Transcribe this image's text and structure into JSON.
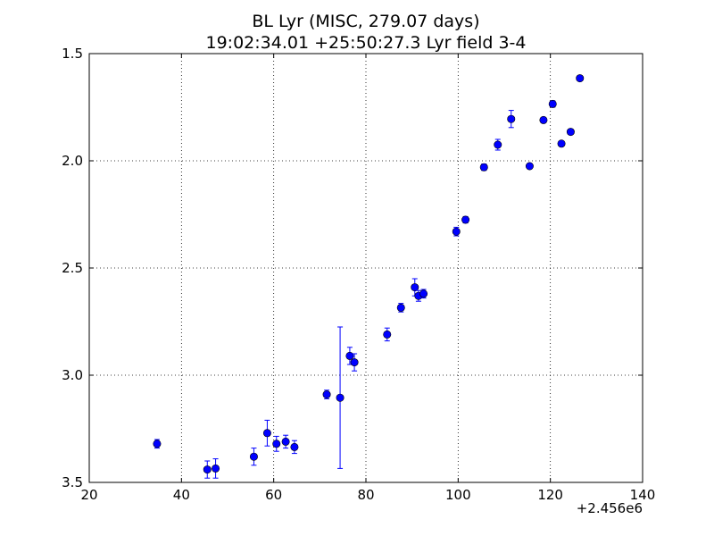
{
  "chart_data": {
    "type": "scatter",
    "title_lines": [
      "BL Lyr (MISC, 279.07 days)",
      "19:02:34.01 +25:50:27.3 Lyr field 3-4"
    ],
    "xlabel": "",
    "ylabel": "",
    "x_offset_label": "+2.456e6",
    "xlim": [
      20,
      140
    ],
    "ylim": [
      1.5,
      3.5
    ],
    "y_inverted": true,
    "grid": true,
    "grid_style": "dotted",
    "marker_color": "#0000ff",
    "xticks": [
      20,
      40,
      60,
      80,
      100,
      120,
      140
    ],
    "xtick_labels": [
      "20",
      "40",
      "60",
      "80",
      "100",
      "120",
      "140"
    ],
    "yticks": [
      1.5,
      2.0,
      2.5,
      3.0,
      3.5
    ],
    "ytick_labels": [
      "1.5",
      "2.0",
      "2.5",
      "3.0",
      "3.5"
    ],
    "points": [
      {
        "x": 34.7,
        "y": 3.32,
        "err": 0.02
      },
      {
        "x": 45.6,
        "y": 3.44,
        "err": 0.04
      },
      {
        "x": 47.4,
        "y": 3.435,
        "err": 0.045
      },
      {
        "x": 55.7,
        "y": 3.38,
        "err": 0.04
      },
      {
        "x": 58.6,
        "y": 3.27,
        "err": 0.06
      },
      {
        "x": 60.6,
        "y": 3.32,
        "err": 0.035
      },
      {
        "x": 62.6,
        "y": 3.31,
        "err": 0.03
      },
      {
        "x": 64.5,
        "y": 3.335,
        "err": 0.03
      },
      {
        "x": 71.5,
        "y": 3.09,
        "err": 0.02
      },
      {
        "x": 74.4,
        "y": 3.105,
        "err": 0.33
      },
      {
        "x": 76.5,
        "y": 2.91,
        "err": 0.04
      },
      {
        "x": 77.5,
        "y": 2.94,
        "err": 0.04
      },
      {
        "x": 84.6,
        "y": 2.81,
        "err": 0.03
      },
      {
        "x": 87.6,
        "y": 2.685,
        "err": 0.02
      },
      {
        "x": 90.6,
        "y": 2.59,
        "err": 0.04
      },
      {
        "x": 91.4,
        "y": 2.63,
        "err": 0.025
      },
      {
        "x": 92.5,
        "y": 2.62,
        "err": 0.02
      },
      {
        "x": 99.6,
        "y": 2.33,
        "err": 0.02
      },
      {
        "x": 101.6,
        "y": 2.275,
        "err": 0.015
      },
      {
        "x": 105.6,
        "y": 2.03,
        "err": 0.015
      },
      {
        "x": 108.6,
        "y": 1.925,
        "err": 0.025
      },
      {
        "x": 111.5,
        "y": 1.805,
        "err": 0.04
      },
      {
        "x": 115.5,
        "y": 2.025,
        "err": 0.01
      },
      {
        "x": 118.5,
        "y": 1.81,
        "err": 0.01
      },
      {
        "x": 120.5,
        "y": 1.735,
        "err": 0.015
      },
      {
        "x": 122.4,
        "y": 1.92,
        "err": 0.01
      },
      {
        "x": 124.4,
        "y": 1.865,
        "err": 0.01
      },
      {
        "x": 126.4,
        "y": 1.615,
        "err": 0.01
      }
    ]
  }
}
